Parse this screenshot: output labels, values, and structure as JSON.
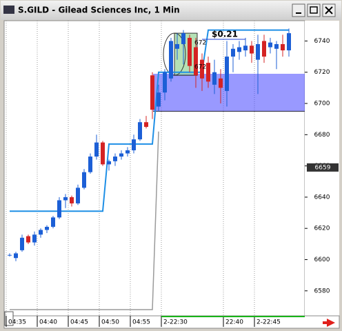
{
  "window": {
    "title": "S.GILD - Gilead Sciences Inc, 1 Min"
  },
  "chart_data": {
    "type": "candlestick",
    "categories": [
      "04:35",
      null,
      null,
      null,
      null,
      "04:40",
      null,
      null,
      null,
      null,
      "04:45",
      null,
      null,
      null,
      null,
      "04:50",
      null,
      null,
      null,
      null,
      "04:55",
      null,
      null,
      null,
      null,
      "2-22:30",
      null,
      null,
      null,
      null,
      null,
      null,
      null,
      null,
      null,
      "22:40",
      null,
      null,
      null,
      null,
      "2-22:45",
      null,
      null,
      null,
      null,
      null
    ],
    "open": [
      6603,
      6601,
      6606,
      6615,
      6611,
      6616,
      6619,
      6621,
      6627,
      6638,
      6640,
      6636,
      6646,
      6656,
      6666,
      6675,
      6661,
      6663,
      6666,
      6668,
      6670,
      6677,
      6688,
      6718,
      6698,
      6707,
      6716,
      6735,
      6738,
      6742,
      6736,
      6728,
      6726,
      6712,
      6716,
      6708,
      6730,
      6733,
      6734,
      6737,
      6728,
      6740,
      6736,
      6735,
      6738,
      6734
    ],
    "high": [
      6604,
      6605,
      6616,
      6616,
      6618,
      6620,
      6622,
      6628,
      6640,
      6642,
      6641,
      6648,
      6658,
      6668,
      6680,
      6676,
      6664,
      6668,
      6670,
      6672,
      6680,
      6690,
      6692,
      6720,
      6712,
      6722,
      6742,
      6745,
      6747,
      6744,
      6742,
      6732,
      6730,
      6728,
      6722,
      6740,
      6738,
      6740,
      6742,
      6740,
      6744,
      6744,
      6742,
      6740,
      6744,
      6748
    ],
    "low": [
      6602,
      6599,
      6605,
      6610,
      6609,
      6614,
      6617,
      6620,
      6626,
      6633,
      6634,
      6635,
      6645,
      6655,
      6664,
      6660,
      6657,
      6660,
      6664,
      6666,
      6668,
      6676,
      6684,
      6690,
      6695,
      6702,
      6714,
      6728,
      6725,
      6720,
      6710,
      6708,
      6710,
      6706,
      6700,
      6698,
      6720,
      6728,
      6730,
      6726,
      6706,
      6726,
      6732,
      6722,
      6730,
      6730
    ],
    "close": [
      6603,
      6604,
      6614,
      6611,
      6616,
      6619,
      6621,
      6627,
      6638,
      6640,
      6636,
      6646,
      6656,
      6666,
      6675,
      6661,
      6663,
      6666,
      6668,
      6670,
      6677,
      6688,
      6685,
      6696,
      6707,
      6720,
      6740,
      6738,
      6745,
      6724,
      6718,
      6716,
      6714,
      6720,
      6710,
      6730,
      6735,
      6736,
      6737,
      6732,
      6738,
      6730,
      6739,
      6738,
      6734,
      6745
    ],
    "up_color": "#1c5fd6",
    "down_color": "#d42323",
    "step_line": {
      "color": "#1e8fe6",
      "values": [
        6631,
        6631,
        6631,
        6631,
        6631,
        6631,
        6631,
        6631,
        6631,
        6631,
        6631,
        6631,
        6631,
        6631,
        6631,
        6631,
        6674,
        6674,
        6674,
        6674,
        6674,
        6674,
        6674,
        6674,
        6720,
        6720,
        6720,
        6720,
        6720,
        6720,
        6720,
        6720,
        6747,
        6747,
        6747,
        6747,
        6747,
        6747,
        6747,
        6747,
        6747,
        6747,
        6747,
        6747,
        6747,
        6747
      ]
    },
    "gray_line": {
      "color": "#9a9a9a",
      "values": [
        6568,
        6568,
        6568,
        6568,
        6568,
        6568,
        6568,
        6568,
        6568,
        6568,
        6568,
        6568,
        6568,
        6568,
        6568,
        6568,
        6568,
        6568,
        6568,
        6568,
        6568,
        6568,
        6568,
        6568,
        6682,
        null,
        null,
        null,
        null,
        null,
        null,
        null,
        null,
        null,
        null,
        null,
        null,
        null,
        null,
        null,
        null,
        null,
        null,
        null,
        null,
        null
      ]
    },
    "band_ylim": [
      6695,
      6719
    ],
    "highlight_ylim": [
      6718,
      6745
    ],
    "annotations": [
      "$0.21",
      "672",
      "672"
    ],
    "last_price": 6659,
    "ylim": [
      6564,
      6753
    ],
    "yticks": [
      6580,
      6600,
      6620,
      6640,
      6660,
      6680,
      6700,
      6720,
      6740
    ],
    "grid": true
  }
}
